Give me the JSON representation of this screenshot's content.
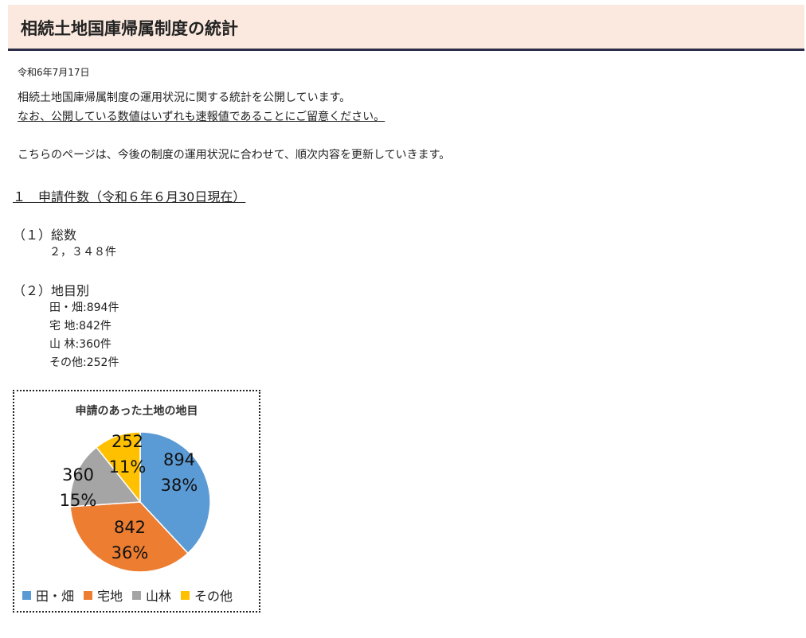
{
  "header": {
    "title": "相続土地国庫帰属制度の統計"
  },
  "date": "令和6年7月17日",
  "intro": {
    "line1": "相続土地国庫帰属制度の運用状況に関する統計を公開しています。",
    "line2": "なお、公開している数値はいずれも速報値であることにご留意ください。",
    "line3": "こちらのページは、今後の制度の運用状況に合わせて、順次内容を更新していきます。"
  },
  "section1": {
    "heading": "１　申請件数（令和６年６月30日現在）",
    "total_label": "（１）総数",
    "total_value": "２，３４８件",
    "by_type_label": "（２）地目別",
    "by_type": [
      "田・畑:894件",
      "宅 地:842件",
      "山 林:360件",
      "その他:252件"
    ]
  },
  "chart_data": {
    "type": "pie",
    "title": "申請のあった土地の地目",
    "categories": [
      "田・畑",
      "宅地",
      "山林",
      "その他"
    ],
    "values": [
      894,
      842,
      360,
      252
    ],
    "percent_labels": [
      "38%",
      "36%",
      "15%",
      "11%"
    ],
    "colors": [
      "#5b9bd5",
      "#ed7d31",
      "#a5a5a5",
      "#ffc000"
    ],
    "legend": "bottom"
  }
}
